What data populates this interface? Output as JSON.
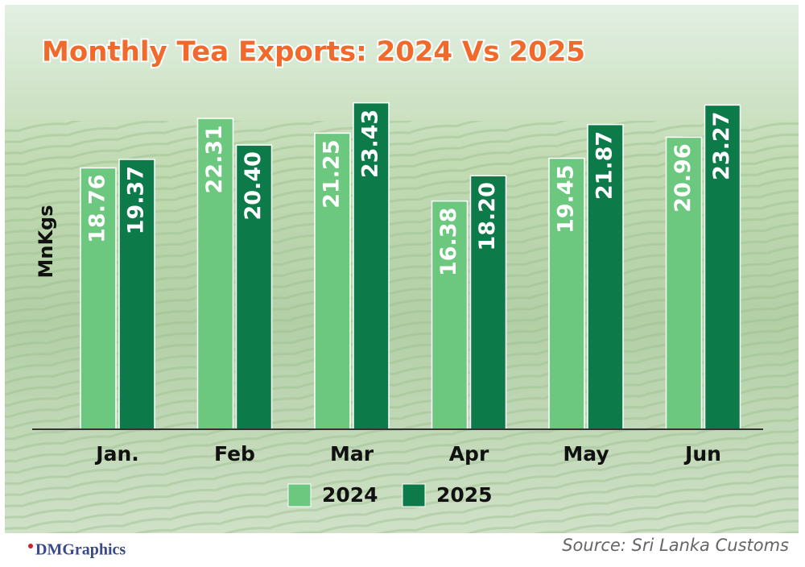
{
  "chart_data": {
    "type": "bar",
    "title": "Monthly Tea Exports: 2024 Vs 2025",
    "y_label": "MnKgs",
    "categories": [
      "Jan.",
      "Feb",
      "Mar",
      "Apr",
      "May",
      "Jun"
    ],
    "series": [
      {
        "name": "2024",
        "color": "#6cc77f",
        "values": [
          18.76,
          22.31,
          21.25,
          16.38,
          19.45,
          20.96
        ],
        "value_labels": [
          "18.76",
          "22.31",
          "21.25",
          "16.38",
          "19.45",
          "20.96"
        ]
      },
      {
        "name": "2025",
        "color": "#0d7a4a",
        "values": [
          19.37,
          20.4,
          23.43,
          18.2,
          21.87,
          23.27
        ],
        "value_labels": [
          "19.37",
          "20.40",
          "23.43",
          "18.20",
          "21.87",
          "23.27"
        ]
      }
    ],
    "ylim": [
      0,
      25
    ],
    "source": "Source: Sri Lanka Customs",
    "credit": "DMGraphics"
  }
}
